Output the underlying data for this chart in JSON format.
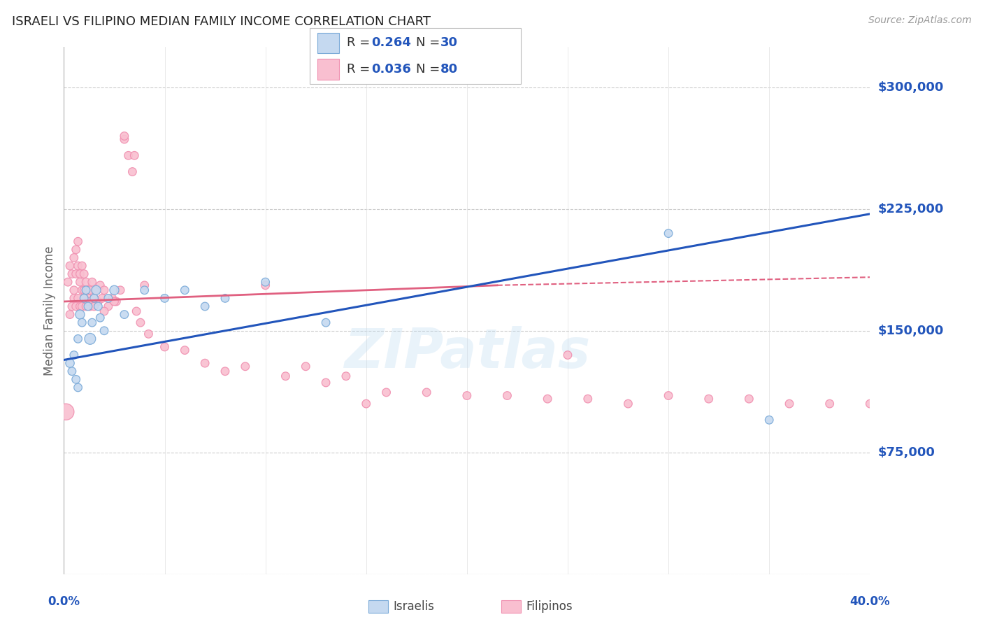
{
  "title": "ISRAELI VS FILIPINO MEDIAN FAMILY INCOME CORRELATION CHART",
  "source": "Source: ZipAtlas.com",
  "ylabel": "Median Family Income",
  "watermark": "ZIPatlas",
  "xlim": [
    0.0,
    0.4
  ],
  "ylim": [
    0,
    325000
  ],
  "yticks": [
    0,
    75000,
    150000,
    225000,
    300000
  ],
  "ytick_labels": [
    "",
    "$75,000",
    "$150,000",
    "$225,000",
    "$300,000"
  ],
  "xtick_labels_positions": [
    0.0,
    0.4
  ],
  "xtick_labels": [
    "0.0%",
    "40.0%"
  ],
  "israeli_fill_color": "#c5d9f0",
  "filipino_fill_color": "#f9bfd0",
  "israeli_edge_color": "#7aaad8",
  "filipino_edge_color": "#f090b0",
  "israeli_line_color": "#2255bb",
  "filipino_line_color": "#e06080",
  "legend_text_color": "#333333",
  "legend_num_color": "#2255bb",
  "background_color": "#ffffff",
  "grid_color": "#cccccc",
  "title_color": "#222222",
  "ytick_color": "#2255bb",
  "xtick_color": "#2255bb",
  "ylabel_color": "#666666",
  "israeli_scatter_x": [
    0.003,
    0.004,
    0.005,
    0.006,
    0.007,
    0.007,
    0.008,
    0.009,
    0.01,
    0.011,
    0.012,
    0.013,
    0.014,
    0.015,
    0.016,
    0.017,
    0.018,
    0.02,
    0.022,
    0.025,
    0.03,
    0.04,
    0.05,
    0.06,
    0.07,
    0.08,
    0.1,
    0.13,
    0.3,
    0.35
  ],
  "israeli_scatter_y": [
    130000,
    125000,
    135000,
    120000,
    115000,
    145000,
    160000,
    155000,
    170000,
    175000,
    165000,
    145000,
    155000,
    170000,
    175000,
    165000,
    158000,
    150000,
    170000,
    175000,
    160000,
    175000,
    170000,
    175000,
    165000,
    170000,
    180000,
    155000,
    210000,
    95000
  ],
  "israeli_scatter_size": [
    80,
    70,
    70,
    70,
    70,
    70,
    90,
    70,
    70,
    70,
    70,
    130,
    70,
    70,
    90,
    70,
    70,
    70,
    70,
    90,
    70,
    70,
    70,
    70,
    70,
    70,
    70,
    70,
    70,
    70
  ],
  "filipino_scatter_x": [
    0.001,
    0.002,
    0.003,
    0.004,
    0.005,
    0.005,
    0.006,
    0.006,
    0.007,
    0.007,
    0.008,
    0.008,
    0.009,
    0.009,
    0.01,
    0.01,
    0.011,
    0.011,
    0.012,
    0.012,
    0.013,
    0.013,
    0.014,
    0.015,
    0.016,
    0.017,
    0.018,
    0.019,
    0.02,
    0.022,
    0.024,
    0.026,
    0.028,
    0.03,
    0.032,
    0.034,
    0.036,
    0.038,
    0.04,
    0.042,
    0.05,
    0.06,
    0.07,
    0.08,
    0.09,
    0.1,
    0.11,
    0.12,
    0.13,
    0.14,
    0.15,
    0.16,
    0.18,
    0.2,
    0.22,
    0.24,
    0.26,
    0.28,
    0.3,
    0.32,
    0.34,
    0.36,
    0.38,
    0.4,
    0.003,
    0.004,
    0.005,
    0.006,
    0.007,
    0.008,
    0.009,
    0.01,
    0.011,
    0.012,
    0.015,
    0.02,
    0.025,
    0.03,
    0.035,
    0.25
  ],
  "filipino_scatter_y": [
    100000,
    180000,
    190000,
    185000,
    195000,
    175000,
    185000,
    200000,
    190000,
    205000,
    185000,
    180000,
    175000,
    190000,
    175000,
    185000,
    175000,
    180000,
    170000,
    175000,
    165000,
    175000,
    180000,
    170000,
    175000,
    168000,
    178000,
    170000,
    175000,
    165000,
    170000,
    168000,
    175000,
    268000,
    258000,
    248000,
    162000,
    155000,
    178000,
    148000,
    140000,
    138000,
    130000,
    125000,
    128000,
    178000,
    122000,
    128000,
    118000,
    122000,
    105000,
    112000,
    112000,
    110000,
    110000,
    108000,
    108000,
    105000,
    110000,
    108000,
    108000,
    105000,
    105000,
    105000,
    160000,
    165000,
    170000,
    165000,
    170000,
    165000,
    165000,
    170000,
    165000,
    168000,
    165000,
    162000,
    168000,
    270000,
    258000,
    135000
  ],
  "filipino_scatter_size": [
    280,
    70,
    70,
    70,
    70,
    70,
    70,
    70,
    70,
    70,
    70,
    70,
    70,
    70,
    70,
    70,
    70,
    70,
    70,
    70,
    70,
    70,
    70,
    70,
    70,
    70,
    70,
    70,
    70,
    70,
    70,
    70,
    70,
    70,
    70,
    70,
    70,
    70,
    70,
    70,
    70,
    70,
    70,
    70,
    70,
    70,
    70,
    70,
    70,
    70,
    70,
    70,
    70,
    70,
    70,
    70,
    70,
    70,
    70,
    70,
    70,
    70,
    70,
    70,
    70,
    70,
    70,
    70,
    70,
    70,
    70,
    70,
    70,
    70,
    70,
    70,
    70,
    70,
    70,
    70
  ],
  "israeli_trend_x0": 0.0,
  "israeli_trend_x1": 0.4,
  "israeli_trend_y0": 132000,
  "israeli_trend_y1": 222000,
  "filipino_trend_solid_x0": 0.0,
  "filipino_trend_solid_x1": 0.215,
  "filipino_trend_y0": 168000,
  "filipino_trend_y1": 178000,
  "filipino_trend_dash_x0": 0.215,
  "filipino_trend_dash_x1": 0.4,
  "filipino_trend_dash_y0": 178000,
  "filipino_trend_dash_y1": 183000
}
